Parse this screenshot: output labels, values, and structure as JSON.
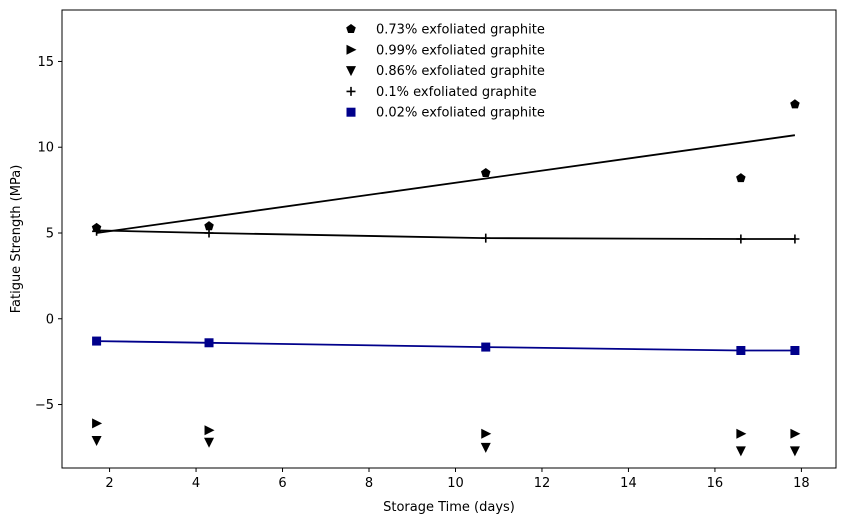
{
  "chart_data": {
    "type": "scatter",
    "title": "",
    "xlabel": "Storage Time (days)",
    "ylabel": "Fatigue Strength (MPa)",
    "xlim": [
      0.9,
      18.8
    ],
    "ylim": [
      -8.7,
      18.0
    ],
    "xticks": [
      2,
      4,
      6,
      8,
      10,
      12,
      14,
      16,
      18
    ],
    "yticks": [
      -5,
      0,
      5,
      10,
      15
    ],
    "ytick_labels": [
      "−5",
      "0",
      "5",
      "10",
      "15"
    ],
    "grid": false,
    "legend_position": "top-center",
    "x": [
      1.7,
      4.3,
      10.7,
      16.6,
      17.85
    ],
    "series": [
      {
        "name": "0.73% exfoliated graphite",
        "marker": "pentagon",
        "color": "#000000",
        "values": [
          5.3,
          5.4,
          8.5,
          8.2,
          12.5
        ],
        "fit_line": [
          [
            1.7,
            5.0
          ],
          [
            17.85,
            10.7
          ]
        ]
      },
      {
        "name": "0.99% exfoliated graphite",
        "marker": "triangle-right",
        "color": "#000000",
        "values": [
          -6.1,
          -6.5,
          -6.7,
          -6.7,
          -6.7
        ]
      },
      {
        "name": "0.86% exfoliated graphite",
        "marker": "triangle-down",
        "color": "#000000",
        "values": [
          -7.1,
          -7.2,
          -7.5,
          -7.7,
          -7.7
        ]
      },
      {
        "name": "0.1% exfoliated graphite",
        "marker": "plus",
        "color": "#000000",
        "values": [
          5.1,
          5.0,
          4.7,
          4.65,
          4.65
        ],
        "fit_line": [
          [
            1.7,
            5.15
          ],
          [
            4.3,
            5.0
          ],
          [
            10.7,
            4.7
          ],
          [
            16.6,
            4.65
          ],
          [
            17.85,
            4.65
          ]
        ]
      },
      {
        "name": "0.02% exfoliated graphite",
        "marker": "square",
        "color": "#00008b",
        "values": [
          -1.3,
          -1.4,
          -1.65,
          -1.85,
          -1.85
        ],
        "fit_line": [
          [
            1.7,
            -1.3
          ],
          [
            4.3,
            -1.4
          ],
          [
            10.7,
            -1.65
          ],
          [
            16.6,
            -1.85
          ],
          [
            17.85,
            -1.85
          ]
        ]
      }
    ]
  }
}
